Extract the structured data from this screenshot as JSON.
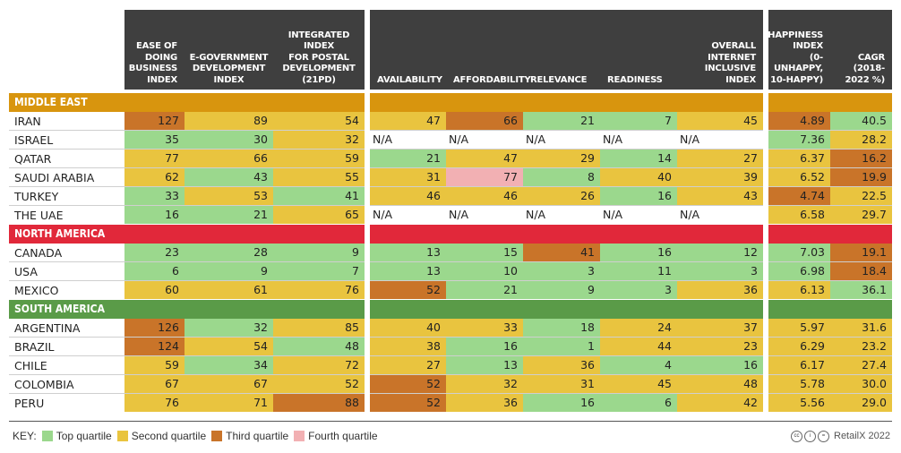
{
  "chart_data": {
    "type": "table",
    "columns": [
      {
        "key": "ease",
        "label": "EASE OF DOING BUSINESS INDEX"
      },
      {
        "key": "egov",
        "label": "E-GOVERNMENT DEVELOPMENT INDEX"
      },
      {
        "key": "postal",
        "label": "INTEGRATED INDEX FOR POSTAL DEVELOPMENT (21PD)"
      },
      {
        "key": "avail",
        "label": "AVAILABILITY"
      },
      {
        "key": "afford",
        "label": "AFFORDABILITY"
      },
      {
        "key": "relev",
        "label": "RELEVANCE"
      },
      {
        "key": "ready",
        "label": "READINESS"
      },
      {
        "key": "overall",
        "label": "OVERALL INTERNET INCLUSIVE INDEX"
      },
      {
        "key": "happy",
        "label": "HAPPINESS INDEX (0-UNHAPPY, 10-HAPPY)"
      },
      {
        "key": "cagr",
        "label": "CAGR (2018-2022 %)"
      }
    ],
    "groups": [
      {
        "name": "MIDDLE EAST",
        "color": "#d8950e",
        "rows": [
          {
            "country": "IRAN",
            "values": [
              "127",
              "89",
              "54",
              "47",
              "66",
              "21",
              "7",
              "45",
              "4.89",
              "40.5"
            ],
            "quartiles": [
              3,
              2,
              2,
              2,
              3,
              1,
              1,
              2,
              3,
              1
            ]
          },
          {
            "country": "ISRAEL",
            "values": [
              "35",
              "30",
              "32",
              "N/A",
              "N/A",
              "N/A",
              "N/A",
              "N/A",
              "7.36",
              "28.2"
            ],
            "quartiles": [
              1,
              1,
              2,
              0,
              0,
              0,
              0,
              0,
              1,
              2
            ]
          },
          {
            "country": "QATAR",
            "values": [
              "77",
              "66",
              "59",
              "21",
              "47",
              "29",
              "14",
              "27",
              "6.37",
              "16.2"
            ],
            "quartiles": [
              2,
              2,
              2,
              1,
              2,
              2,
              1,
              2,
              2,
              3
            ]
          },
          {
            "country": "SAUDI ARABIA",
            "values": [
              "62",
              "43",
              "55",
              "31",
              "77",
              "8",
              "40",
              "39",
              "6.52",
              "19.9"
            ],
            "quartiles": [
              2,
              1,
              2,
              2,
              4,
              1,
              2,
              2,
              2,
              3
            ]
          },
          {
            "country": "TURKEY",
            "values": [
              "33",
              "53",
              "41",
              "46",
              "46",
              "26",
              "16",
              "43",
              "4.74",
              "22.5"
            ],
            "quartiles": [
              1,
              2,
              1,
              2,
              2,
              2,
              1,
              2,
              3,
              2
            ]
          },
          {
            "country": "THE UAE",
            "values": [
              "16",
              "21",
              "65",
              "N/A",
              "N/A",
              "N/A",
              "N/A",
              "N/A",
              "6.58",
              "29.7"
            ],
            "quartiles": [
              1,
              1,
              2,
              0,
              0,
              0,
              0,
              0,
              2,
              2
            ]
          }
        ]
      },
      {
        "name": "NORTH AMERICA",
        "color": "#e1283a",
        "rows": [
          {
            "country": "CANADA",
            "values": [
              "23",
              "28",
              "9",
              "13",
              "15",
              "41",
              "16",
              "12",
              "7.03",
              "19.1"
            ],
            "quartiles": [
              1,
              1,
              1,
              1,
              1,
              3,
              1,
              1,
              1,
              3
            ]
          },
          {
            "country": "USA",
            "values": [
              "6",
              "9",
              "7",
              "13",
              "10",
              "3",
              "11",
              "3",
              "6.98",
              "18.4"
            ],
            "quartiles": [
              1,
              1,
              1,
              1,
              1,
              1,
              1,
              1,
              1,
              3
            ]
          },
          {
            "country": "MEXICO",
            "values": [
              "60",
              "61",
              "76",
              "52",
              "21",
              "9",
              "3",
              "36",
              "6.13",
              "36.1"
            ],
            "quartiles": [
              2,
              2,
              2,
              3,
              1,
              1,
              1,
              2,
              2,
              1
            ]
          }
        ]
      },
      {
        "name": "SOUTH AMERICA",
        "color": "#5a9b48",
        "rows": [
          {
            "country": "ARGENTINA",
            "values": [
              "126",
              "32",
              "85",
              "40",
              "33",
              "18",
              "24",
              "37",
              "5.97",
              "31.6"
            ],
            "quartiles": [
              3,
              1,
              2,
              2,
              2,
              1,
              2,
              2,
              2,
              2
            ]
          },
          {
            "country": "BRAZIL",
            "values": [
              "124",
              "54",
              "48",
              "38",
              "16",
              "1",
              "44",
              "23",
              "6.29",
              "23.2"
            ],
            "quartiles": [
              3,
              2,
              1,
              2,
              1,
              1,
              2,
              2,
              2,
              2
            ]
          },
          {
            "country": "CHILE",
            "values": [
              "59",
              "34",
              "72",
              "27",
              "13",
              "36",
              "4",
              "16",
              "6.17",
              "27.4"
            ],
            "quartiles": [
              2,
              1,
              2,
              2,
              1,
              2,
              1,
              1,
              2,
              2
            ]
          },
          {
            "country": "COLOMBIA",
            "values": [
              "67",
              "67",
              "52",
              "52",
              "32",
              "31",
              "45",
              "48",
              "5.78",
              "30.0"
            ],
            "quartiles": [
              2,
              2,
              2,
              3,
              2,
              2,
              2,
              2,
              2,
              2
            ]
          },
          {
            "country": "PERU",
            "values": [
              "76",
              "71",
              "88",
              "52",
              "36",
              "16",
              "6",
              "42",
              "5.56",
              "29.0"
            ],
            "quartiles": [
              2,
              2,
              3,
              3,
              2,
              1,
              1,
              2,
              2,
              2
            ]
          }
        ]
      }
    ],
    "quartile_colors": {
      "1": "#9bd88d",
      "2": "#e9c43f",
      "3": "#c97429",
      "4": "#f2b0b3"
    },
    "legend": {
      "prefix": "KEY:",
      "items": [
        {
          "label": "Top quartile",
          "color": "#9bd88d"
        },
        {
          "label": "Second quartile",
          "color": "#e9c43f"
        },
        {
          "label": "Third quartile",
          "color": "#c97429"
        },
        {
          "label": "Fourth quartile",
          "color": "#f2b0b3"
        }
      ]
    }
  },
  "credit": {
    "license_icon": "cc-by-nd-icons",
    "text": "RetailX 2022"
  }
}
